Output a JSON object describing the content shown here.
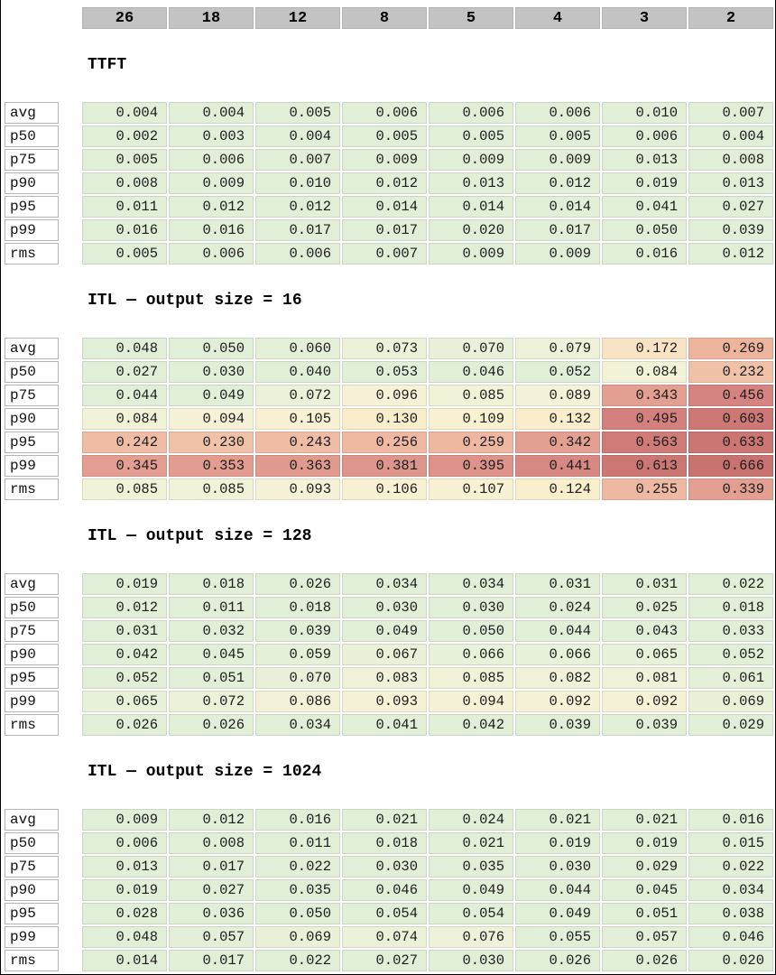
{
  "columns": [
    "26",
    "18",
    "12",
    "8",
    "5",
    "4",
    "3",
    "2"
  ],
  "row_labels": [
    "avg",
    "p50",
    "p75",
    "p90",
    "p95",
    "p99",
    "rms"
  ],
  "chart_data": [
    {
      "type": "heatmap",
      "title": "TTFT",
      "columns": [
        "26",
        "18",
        "12",
        "8",
        "5",
        "4",
        "3",
        "2"
      ],
      "rows": [
        "avg",
        "p50",
        "p75",
        "p90",
        "p95",
        "p99",
        "rms"
      ],
      "values": [
        [
          0.004,
          0.004,
          0.005,
          0.006,
          0.006,
          0.006,
          0.01,
          0.007
        ],
        [
          0.002,
          0.003,
          0.004,
          0.005,
          0.005,
          0.005,
          0.006,
          0.004
        ],
        [
          0.005,
          0.006,
          0.007,
          0.009,
          0.009,
          0.009,
          0.013,
          0.008
        ],
        [
          0.008,
          0.009,
          0.01,
          0.012,
          0.013,
          0.012,
          0.019,
          0.013
        ],
        [
          0.011,
          0.012,
          0.012,
          0.014,
          0.014,
          0.014,
          0.041,
          0.027
        ],
        [
          0.016,
          0.016,
          0.017,
          0.017,
          0.02,
          0.017,
          0.05,
          0.039
        ],
        [
          0.005,
          0.006,
          0.006,
          0.007,
          0.009,
          0.009,
          0.016,
          0.012
        ]
      ]
    },
    {
      "type": "heatmap",
      "title": "ITL — output size = 16",
      "columns": [
        "26",
        "18",
        "12",
        "8",
        "5",
        "4",
        "3",
        "2"
      ],
      "rows": [
        "avg",
        "p50",
        "p75",
        "p90",
        "p95",
        "p99",
        "rms"
      ],
      "values": [
        [
          0.048,
          0.05,
          0.06,
          0.073,
          0.07,
          0.079,
          0.172,
          0.269
        ],
        [
          0.027,
          0.03,
          0.04,
          0.053,
          0.046,
          0.052,
          0.084,
          0.232
        ],
        [
          0.044,
          0.049,
          0.072,
          0.096,
          0.085,
          0.089,
          0.343,
          0.456
        ],
        [
          0.084,
          0.094,
          0.105,
          0.13,
          0.109,
          0.132,
          0.495,
          0.603
        ],
        [
          0.242,
          0.23,
          0.243,
          0.256,
          0.259,
          0.342,
          0.563,
          0.633
        ],
        [
          0.345,
          0.353,
          0.363,
          0.381,
          0.395,
          0.441,
          0.613,
          0.666
        ],
        [
          0.085,
          0.085,
          0.093,
          0.106,
          0.107,
          0.124,
          0.255,
          0.339
        ]
      ]
    },
    {
      "type": "heatmap",
      "title": "ITL — output size = 128",
      "columns": [
        "26",
        "18",
        "12",
        "8",
        "5",
        "4",
        "3",
        "2"
      ],
      "rows": [
        "avg",
        "p50",
        "p75",
        "p90",
        "p95",
        "p99",
        "rms"
      ],
      "values": [
        [
          0.019,
          0.018,
          0.026,
          0.034,
          0.034,
          0.031,
          0.031,
          0.022
        ],
        [
          0.012,
          0.011,
          0.018,
          0.03,
          0.03,
          0.024,
          0.025,
          0.018
        ],
        [
          0.031,
          0.032,
          0.039,
          0.049,
          0.05,
          0.044,
          0.043,
          0.033
        ],
        [
          0.042,
          0.045,
          0.059,
          0.067,
          0.066,
          0.066,
          0.065,
          0.052
        ],
        [
          0.052,
          0.051,
          0.07,
          0.083,
          0.085,
          0.082,
          0.081,
          0.061
        ],
        [
          0.065,
          0.072,
          0.086,
          0.093,
          0.094,
          0.092,
          0.092,
          0.069
        ],
        [
          0.026,
          0.026,
          0.034,
          0.041,
          0.042,
          0.039,
          0.039,
          0.029
        ]
      ]
    },
    {
      "type": "heatmap",
      "title": "ITL — output size = 1024",
      "columns": [
        "26",
        "18",
        "12",
        "8",
        "5",
        "4",
        "3",
        "2"
      ],
      "rows": [
        "avg",
        "p50",
        "p75",
        "p90",
        "p95",
        "p99",
        "rms"
      ],
      "values": [
        [
          0.009,
          0.012,
          0.016,
          0.021,
          0.024,
          0.021,
          0.021,
          0.016
        ],
        [
          0.006,
          0.008,
          0.011,
          0.018,
          0.021,
          0.019,
          0.019,
          0.015
        ],
        [
          0.013,
          0.017,
          0.022,
          0.03,
          0.035,
          0.03,
          0.029,
          0.022
        ],
        [
          0.019,
          0.027,
          0.035,
          0.046,
          0.049,
          0.044,
          0.045,
          0.034
        ],
        [
          0.028,
          0.036,
          0.05,
          0.054,
          0.054,
          0.049,
          0.051,
          0.038
        ],
        [
          0.048,
          0.057,
          0.069,
          0.074,
          0.076,
          0.055,
          0.057,
          0.046
        ],
        [
          0.014,
          0.017,
          0.022,
          0.027,
          0.03,
          0.026,
          0.026,
          0.02
        ]
      ]
    }
  ],
  "value_format": "0.000",
  "colors": {
    "header_bg": "#c3c3c3",
    "header_border": "#b2b2b2",
    "label_border": "#b4b4b4",
    "cell_text": "#1c1c1c",
    "page_border": "#000000",
    "scale_note": "green = low latency, red = high latency, shared across all tables",
    "scale": [
      {
        "v": 0.0,
        "c": "#e2efd8"
      },
      {
        "v": 0.055,
        "c": "#e2efd8"
      },
      {
        "v": 0.075,
        "c": "#edf2da"
      },
      {
        "v": 0.092,
        "c": "#f6f2d8"
      },
      {
        "v": 0.115,
        "c": "#f9f0d0"
      },
      {
        "v": 0.14,
        "c": "#f9ecc8"
      },
      {
        "v": 0.175,
        "c": "#f8e2c4"
      },
      {
        "v": 0.235,
        "c": "#f0bfa8"
      },
      {
        "v": 0.275,
        "c": "#ecb29c"
      },
      {
        "v": 0.35,
        "c": "#e29d90"
      },
      {
        "v": 0.465,
        "c": "#d58280"
      },
      {
        "v": 0.67,
        "c": "#c97370"
      }
    ]
  }
}
